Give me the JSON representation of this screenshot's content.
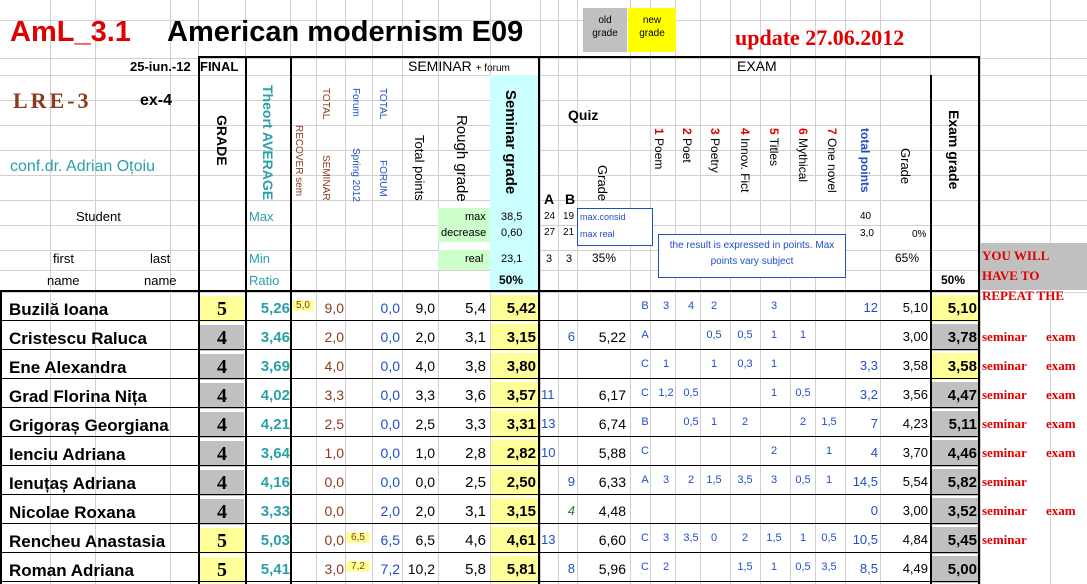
{
  "header": {
    "code": "AmL_3.1",
    "title": "American modernism E09",
    "legend_old": [
      "old",
      "grade"
    ],
    "legend_new": [
      "new",
      "grade"
    ],
    "update": "update 27.06.2012",
    "date": "25-iun.-12",
    "final_label": "FINAL",
    "lre": "LRE-3",
    "ex": "ex-4",
    "teacher": "conf.dr. Adrian Oțoiu",
    "seminar_group": "SEMINAR",
    "seminar_group_sub": "+ forum",
    "exam_group": "EXAM",
    "quiz": "Quiz"
  },
  "column_headers": {
    "grade": "GRADE",
    "theory_avg": "Theort AVERAGE",
    "recover": "RECOVER sem",
    "total_seminar": [
      "TOTAL",
      "SEMINAR"
    ],
    "forum": [
      "Forum",
      "Spring 2012"
    ],
    "total_forum": [
      "TOTAL",
      "FORUM"
    ],
    "total_points": "Total points",
    "rough_grade": "Rough grade",
    "seminar_grade": "Seminar grade",
    "quiz_a": "A",
    "quiz_b": "B",
    "quiz_grade": "Grade",
    "exam_items": [
      {
        "num": "1",
        "label": "Poem"
      },
      {
        "num": "2",
        "label": "Poet"
      },
      {
        "num": "3",
        "label": "Poetry"
      },
      {
        "num": "4",
        "label": "Innov. Fict"
      },
      {
        "num": "5",
        "label": "Titles"
      },
      {
        "num": "6",
        "label": "Mythical"
      },
      {
        "num": "7",
        "label": "One novel"
      }
    ],
    "exam_total": "total points",
    "exam_grade_small": "Grade",
    "exam_grade": "Exam grade"
  },
  "info_rows": {
    "student": "Student",
    "max": "Max",
    "min": "Min",
    "ratio": "Ratio",
    "first": "first",
    "last": "last",
    "name1": "name",
    "name2": "name",
    "max_label": "max",
    "decrease_label": "decrease",
    "real_label": "real",
    "max_val": "38,5",
    "decrease_val": "0,60",
    "real_val": "23,1",
    "sem_pct": "50%",
    "quiz_max": [
      "24",
      "19"
    ],
    "quiz_dec": [
      "27",
      "21"
    ],
    "quiz_real": [
      "3",
      "3"
    ],
    "max_consid": "max.consid",
    "max_real": "max real",
    "quiz_pct": "35%",
    "exam_note": "the result is expressed in points. Max points vary subject",
    "exam_max": "40",
    "exam_dec": "3,0",
    "exam_pct0": "0%",
    "exam_pct": "65%",
    "exam_grade_pct": "50%",
    "warning": "YOU WILL HAVE TO REPEAT THE"
  },
  "students": [
    {
      "name": "Buzilă Ioana",
      "final": "5",
      "avg": "5,26",
      "recover": "5,0",
      "tsem": "9,0",
      "forum": "",
      "tforum": "0,0",
      "tpoints": "9,0",
      "rough": "5,4",
      "semgrade": "5,42",
      "qa": "",
      "qb": "",
      "qgrade": "",
      "items": [
        "B",
        "3",
        "4",
        "2",
        "",
        "3",
        "",
        ""
      ],
      "etotal": "12",
      "egrade_s": "5,10",
      "egrade": "5,10",
      "r1": "",
      "r2": ""
    },
    {
      "name": "Cristescu Raluca",
      "final": "4",
      "avg": "3,46",
      "recover": "",
      "tsem": "2,0",
      "forum": "",
      "tforum": "0,0",
      "tpoints": "2,0",
      "rough": "3,1",
      "semgrade": "3,15",
      "qa": "",
      "qb": "6",
      "qgrade": "5,22",
      "items": [
        "A",
        "",
        "",
        "0,5",
        "0,5",
        "1",
        "1",
        ""
      ],
      "etotal": "",
      "egrade_s": "3,00",
      "egrade": "3,78",
      "r1": "seminar",
      "r2": "exam"
    },
    {
      "name": "Ene Alexandra",
      "final": "4",
      "avg": "3,69",
      "recover": "",
      "tsem": "4,0",
      "forum": "",
      "tforum": "0,0",
      "tpoints": "4,0",
      "rough": "3,8",
      "semgrade": "3,80",
      "qa": "",
      "qb": "",
      "qgrade": "",
      "items": [
        "C",
        "1",
        "",
        "1",
        "0,3",
        "1",
        "",
        ""
      ],
      "etotal": "3,3",
      "egrade_s": "3,58",
      "egrade": "3,58",
      "r1": "seminar",
      "r2": "exam"
    },
    {
      "name": "Grad Florina Nița",
      "final": "4",
      "avg": "4,02",
      "recover": "",
      "tsem": "3,3",
      "forum": "",
      "tforum": "0,0",
      "tpoints": "3,3",
      "rough": "3,6",
      "semgrade": "3,57",
      "qa": "11",
      "qb": "",
      "qgrade": "6,17",
      "items": [
        "C",
        "1,2",
        "0,5",
        "",
        "",
        "1",
        "0,5",
        ""
      ],
      "etotal": "3,2",
      "egrade_s": "3,56",
      "egrade": "4,47",
      "r1": "seminar",
      "r2": "exam"
    },
    {
      "name": "Grigoraș Georgiana",
      "final": "4",
      "avg": "4,21",
      "recover": "",
      "tsem": "2,5",
      "forum": "",
      "tforum": "0,0",
      "tpoints": "2,5",
      "rough": "3,3",
      "semgrade": "3,31",
      "qa": "13",
      "qb": "",
      "qgrade": "6,74",
      "items": [
        "B",
        "",
        "0,5",
        "1",
        "2",
        "",
        "2",
        "1,5"
      ],
      "etotal": "7",
      "egrade_s": "4,23",
      "egrade": "5,11",
      "r1": "seminar",
      "r2": "exam"
    },
    {
      "name": "Ienciu Adriana",
      "final": "4",
      "avg": "3,64",
      "recover": "",
      "tsem": "1,0",
      "forum": "",
      "tforum": "0,0",
      "tpoints": "1,0",
      "rough": "2,8",
      "semgrade": "2,82",
      "qa": "10",
      "qb": "",
      "qgrade": "5,88",
      "items": [
        "C",
        "",
        "",
        "",
        "",
        "2",
        "",
        "1"
      ],
      "etotal": "4",
      "egrade_s": "3,70",
      "egrade": "4,46",
      "r1": "seminar",
      "r2": "exam"
    },
    {
      "name": "Ienuțaș Adriana",
      "final": "4",
      "avg": "4,16",
      "recover": "",
      "tsem": "0,0",
      "forum": "",
      "tforum": "0,0",
      "tpoints": "0,0",
      "rough": "2,5",
      "semgrade": "2,50",
      "qa": "",
      "qb": "9",
      "qgrade": "6,33",
      "items": [
        "A",
        "3",
        "2",
        "1,5",
        "3,5",
        "3",
        "0,5",
        "1"
      ],
      "etotal": "14,5",
      "egrade_s": "5,54",
      "egrade": "5,82",
      "r1": "seminar",
      "r2": ""
    },
    {
      "name": "Nicolae Roxana",
      "final": "4",
      "avg": "3,33",
      "recover": "",
      "tsem": "0,0",
      "forum": "",
      "tforum": "2,0",
      "tpoints": "2,0",
      "rough": "3,1",
      "semgrade": "3,15",
      "qa": "",
      "qb": "4",
      "qgrade": "4,48",
      "items": [
        "",
        "",
        "",
        "",
        "",
        "",
        "",
        ""
      ],
      "etotal": "0",
      "egrade_s": "3,00",
      "egrade": "3,52",
      "r1": "seminar",
      "r2": "exam"
    },
    {
      "name": "Rencheu Anastasia",
      "final": "5",
      "avg": "5,03",
      "recover": "",
      "tsem": "0,0",
      "forum": "6,5",
      "tforum": "6,5",
      "tpoints": "6,5",
      "rough": "4,6",
      "semgrade": "4,61",
      "qa": "13",
      "qb": "",
      "qgrade": "6,60",
      "items": [
        "C",
        "3",
        "3,5",
        "0",
        "2",
        "1,5",
        "1",
        "0,5"
      ],
      "etotal": "10,5",
      "egrade_s": "4,84",
      "egrade": "5,45",
      "r1": "seminar",
      "r2": ""
    },
    {
      "name": "Roman Adriana",
      "final": "5",
      "avg": "5,41",
      "recover": "",
      "tsem": "3,0",
      "forum": "7,2",
      "tforum": "7,2",
      "tpoints": "10,2",
      "rough": "5,8",
      "semgrade": "5,81",
      "qa": "",
      "qb": "8",
      "qgrade": "5,96",
      "items": [
        "C",
        "2",
        "",
        "",
        "1,5",
        "1",
        "0,5",
        "3,5"
      ],
      "etotal": "8,5",
      "egrade_s": "4,49",
      "egrade": "5,00",
      "r1": "",
      "r2": ""
    }
  ],
  "colors": {
    "yellow_cell": "#ffff99",
    "gray_cell": "#c0c0c0",
    "cyan_cell": "#ccffff",
    "green_cell": "#ccffcc",
    "legend_yellow": "#ffff00",
    "title_red": "#e00000",
    "teal": "#2aa0a8"
  }
}
